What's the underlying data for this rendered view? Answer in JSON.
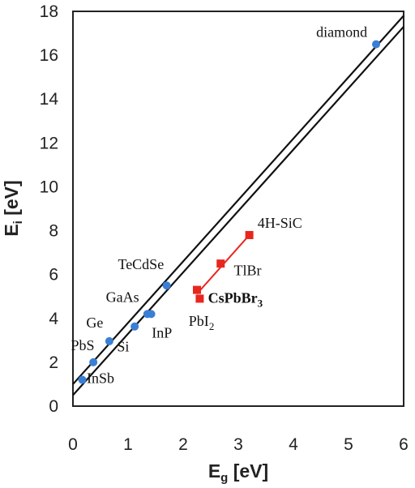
{
  "chart_data": {
    "type": "scatter",
    "xlabel": {
      "main": "E",
      "sub": "g",
      "unit": " [eV]"
    },
    "ylabel": {
      "main": "E",
      "sub": "i",
      "unit": " [eV]"
    },
    "xlim": [
      0,
      6
    ],
    "ylim": [
      0,
      18
    ],
    "xticks": [
      "0",
      "1",
      "2",
      "3",
      "4",
      "5",
      "6"
    ],
    "yticks": [
      "0",
      "2",
      "4",
      "6",
      "8",
      "10",
      "12",
      "14",
      "16",
      "18"
    ],
    "grid": false,
    "reference_lines": [
      {
        "x": [
          0,
          6
        ],
        "y": [
          1.0,
          17.8
        ]
      },
      {
        "x": [
          0,
          6
        ],
        "y": [
          0.5,
          17.3
        ]
      }
    ],
    "series": [
      {
        "color": "#3a7fd5",
        "marker": "circle",
        "points": [
          {
            "label": "InSb",
            "x": 0.17,
            "y": 1.2
          },
          {
            "label": "PbS",
            "x": 0.37,
            "y": 2.0
          },
          {
            "label": "Ge",
            "x": 0.66,
            "y": 2.96
          },
          {
            "label": "Si",
            "x": 1.12,
            "y": 3.63
          },
          {
            "label": "GaAs",
            "x": 1.35,
            "y": 4.2
          },
          {
            "label": "InP",
            "x": 1.42,
            "y": 4.2
          },
          {
            "label": "TeCdSe",
            "x": 1.7,
            "y": 5.5
          },
          {
            "label": "diamond",
            "x": 5.5,
            "y": 16.5
          }
        ]
      },
      {
        "color": "#e8261e",
        "marker": "square",
        "points": [
          {
            "label": "CsPbBr3",
            "x": 2.25,
            "y": 5.3
          },
          {
            "label": "PbI2",
            "x": 2.3,
            "y": 4.9
          },
          {
            "label": "TlBr",
            "x": 2.68,
            "y": 6.5
          },
          {
            "label": "4H-SiC",
            "x": 3.2,
            "y": 7.8
          }
        ]
      }
    ],
    "fit_line": {
      "color": "#e8261e",
      "x": [
        2.25,
        3.2
      ],
      "y": [
        5.12,
        7.8
      ]
    },
    "annotations": [
      {
        "text": "InSb",
        "x": 0.25,
        "y": 1.05,
        "anchor": "start"
      },
      {
        "text": "PbS",
        "x": 0.39,
        "y": 2.55,
        "anchor": "end"
      },
      {
        "text": "Ge",
        "x": 0.55,
        "y": 3.58,
        "anchor": "end"
      },
      {
        "text": "Si",
        "x": 1.02,
        "y": 2.5,
        "anchor": "end"
      },
      {
        "text": "GaAs",
        "x": 1.2,
        "y": 4.75,
        "anchor": "end"
      },
      {
        "text": "InP",
        "x": 1.43,
        "y": 3.12,
        "anchor": "start"
      },
      {
        "text": "TeCdSe",
        "x": 1.65,
        "y": 6.25,
        "anchor": "end"
      },
      {
        "text": "diamond",
        "x": 5.34,
        "y": 16.83,
        "anchor": "end"
      },
      {
        "text": "CsPbBr",
        "sub": "3",
        "x": 2.45,
        "y": 4.72,
        "anchor": "start",
        "bold": true
      },
      {
        "text": "PbI",
        "sub": "2",
        "x": 2.1,
        "y": 3.65,
        "anchor": "start"
      },
      {
        "text": "TlBr",
        "x": 3.17,
        "y": 5.96,
        "anchor": "middle"
      },
      {
        "text": "4H-SiC",
        "x": 3.35,
        "y": 8.13,
        "anchor": "start"
      }
    ]
  }
}
